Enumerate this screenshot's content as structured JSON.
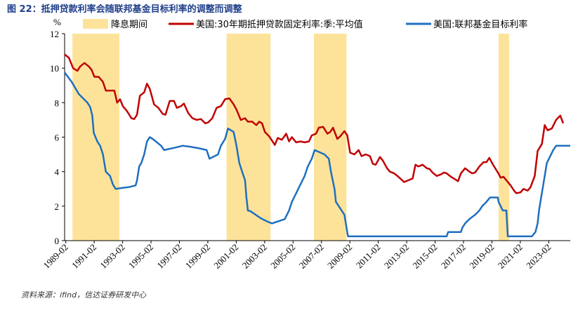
{
  "figure": {
    "title": "图 22：抵押贷款利率会随联邦基金目标利率的调整而调整",
    "source": "资料来源：ifind，信达证券研发中心"
  },
  "chart_data": {
    "type": "line",
    "ylabel": "%",
    "ylim": [
      0,
      12
    ],
    "yticks": [
      0,
      2,
      4,
      6,
      8,
      10,
      12
    ],
    "xlim": [
      1989.0,
      2024.6
    ],
    "xticks": [
      "1989-02",
      "1991-02",
      "1993-02",
      "1995-02",
      "1997-02",
      "1999-02",
      "2001-02",
      "2003-02",
      "2005-02",
      "2007-02",
      "2009-02",
      "2011-02",
      "2013-02",
      "2015-02",
      "2017-02",
      "2019-02",
      "2021-02",
      "2023-02"
    ],
    "grid": false,
    "legend": "top",
    "shaded_periods": {
      "name": "降息期间",
      "color": "#fde39a",
      "ranges": [
        [
          1989.55,
          1992.85
        ],
        [
          2000.4,
          2003.5
        ],
        [
          2006.55,
          2008.85
        ],
        [
          2019.55,
          2020.3
        ]
      ]
    },
    "series": [
      {
        "name": "美国:30年期抵押贷款固定利率:季:平均值",
        "color": "#c00000",
        "points": [
          [
            1989.0,
            10.8
          ],
          [
            1989.3,
            10.6
          ],
          [
            1989.6,
            10.0
          ],
          [
            1989.9,
            9.85
          ],
          [
            1990.1,
            10.1
          ],
          [
            1990.4,
            10.3
          ],
          [
            1990.7,
            10.1
          ],
          [
            1990.9,
            9.9
          ],
          [
            1991.1,
            9.5
          ],
          [
            1991.4,
            9.5
          ],
          [
            1991.7,
            9.2
          ],
          [
            1991.9,
            8.7
          ],
          [
            1992.2,
            8.7
          ],
          [
            1992.5,
            8.7
          ],
          [
            1992.7,
            8.0
          ],
          [
            1992.9,
            8.2
          ],
          [
            1993.1,
            7.8
          ],
          [
            1993.4,
            7.5
          ],
          [
            1993.7,
            7.1
          ],
          [
            1993.9,
            7.05
          ],
          [
            1994.1,
            7.3
          ],
          [
            1994.3,
            8.4
          ],
          [
            1994.6,
            8.6
          ],
          [
            1994.8,
            9.1
          ],
          [
            1995.0,
            8.8
          ],
          [
            1995.3,
            7.9
          ],
          [
            1995.6,
            7.7
          ],
          [
            1995.9,
            7.35
          ],
          [
            1996.1,
            7.3
          ],
          [
            1996.4,
            8.1
          ],
          [
            1996.7,
            8.1
          ],
          [
            1996.9,
            7.7
          ],
          [
            1997.2,
            7.8
          ],
          [
            1997.4,
            7.95
          ],
          [
            1997.7,
            7.4
          ],
          [
            1998.0,
            7.1
          ],
          [
            1998.3,
            7.0
          ],
          [
            1998.6,
            7.05
          ],
          [
            1998.9,
            6.8
          ],
          [
            1999.1,
            6.85
          ],
          [
            1999.4,
            7.1
          ],
          [
            1999.7,
            7.7
          ],
          [
            2000.0,
            7.8
          ],
          [
            2000.3,
            8.2
          ],
          [
            2000.6,
            8.25
          ],
          [
            2000.9,
            7.9
          ],
          [
            2001.1,
            7.6
          ],
          [
            2001.4,
            7.0
          ],
          [
            2001.7,
            7.1
          ],
          [
            2001.9,
            6.9
          ],
          [
            2002.2,
            6.9
          ],
          [
            2002.5,
            6.7
          ],
          [
            2002.7,
            6.9
          ],
          [
            2002.9,
            6.8
          ],
          [
            2003.1,
            6.3
          ],
          [
            2003.4,
            6.05
          ],
          [
            2003.6,
            5.8
          ],
          [
            2003.8,
            5.55
          ],
          [
            2004.0,
            5.95
          ],
          [
            2004.3,
            5.85
          ],
          [
            2004.6,
            6.2
          ],
          [
            2004.8,
            5.75
          ],
          [
            2005.0,
            6.0
          ],
          [
            2005.3,
            5.7
          ],
          [
            2005.6,
            5.75
          ],
          [
            2005.9,
            5.7
          ],
          [
            2006.2,
            5.75
          ],
          [
            2006.4,
            6.1
          ],
          [
            2006.7,
            6.2
          ],
          [
            2006.9,
            6.55
          ],
          [
            2007.2,
            6.6
          ],
          [
            2007.5,
            6.2
          ],
          [
            2007.7,
            6.3
          ],
          [
            2007.9,
            6.55
          ],
          [
            2008.2,
            5.9
          ],
          [
            2008.4,
            6.05
          ],
          [
            2008.7,
            6.35
          ],
          [
            2008.9,
            6.1
          ],
          [
            2009.1,
            5.1
          ],
          [
            2009.4,
            5.0
          ],
          [
            2009.7,
            5.25
          ],
          [
            2009.9,
            4.9
          ],
          [
            2010.2,
            5.0
          ],
          [
            2010.5,
            4.9
          ],
          [
            2010.7,
            4.45
          ],
          [
            2010.9,
            4.4
          ],
          [
            2011.2,
            4.85
          ],
          [
            2011.4,
            4.65
          ],
          [
            2011.7,
            4.2
          ],
          [
            2011.9,
            4.0
          ],
          [
            2012.2,
            3.9
          ],
          [
            2012.5,
            3.7
          ],
          [
            2012.7,
            3.55
          ],
          [
            2012.9,
            3.4
          ],
          [
            2013.2,
            3.5
          ],
          [
            2013.5,
            3.6
          ],
          [
            2013.7,
            4.4
          ],
          [
            2013.9,
            4.3
          ],
          [
            2014.2,
            4.4
          ],
          [
            2014.5,
            4.2
          ],
          [
            2014.7,
            4.15
          ],
          [
            2014.9,
            3.95
          ],
          [
            2015.2,
            3.75
          ],
          [
            2015.5,
            3.85
          ],
          [
            2015.7,
            3.95
          ],
          [
            2015.9,
            3.9
          ],
          [
            2016.2,
            3.7
          ],
          [
            2016.5,
            3.55
          ],
          [
            2016.7,
            3.45
          ],
          [
            2016.9,
            3.9
          ],
          [
            2017.2,
            4.2
          ],
          [
            2017.5,
            4.0
          ],
          [
            2017.7,
            3.9
          ],
          [
            2017.9,
            3.95
          ],
          [
            2018.2,
            4.3
          ],
          [
            2018.5,
            4.55
          ],
          [
            2018.7,
            4.55
          ],
          [
            2018.9,
            4.8
          ],
          [
            2019.2,
            4.35
          ],
          [
            2019.5,
            3.95
          ],
          [
            2019.7,
            3.65
          ],
          [
            2019.9,
            3.7
          ],
          [
            2020.1,
            3.5
          ],
          [
            2020.4,
            3.2
          ],
          [
            2020.6,
            2.95
          ],
          [
            2020.8,
            2.75
          ],
          [
            2021.1,
            2.8
          ],
          [
            2021.3,
            3.0
          ],
          [
            2021.6,
            2.9
          ],
          [
            2021.8,
            3.1
          ],
          [
            2022.1,
            3.75
          ],
          [
            2022.3,
            5.2
          ],
          [
            2022.6,
            5.6
          ],
          [
            2022.8,
            6.7
          ],
          [
            2023.0,
            6.4
          ],
          [
            2023.3,
            6.5
          ],
          [
            2023.6,
            7.0
          ],
          [
            2023.9,
            7.25
          ],
          [
            2024.1,
            6.8
          ]
        ]
      },
      {
        "name": "美国:联邦基金目标利率",
        "color": "#1f6fbf",
        "points": [
          [
            1989.0,
            9.75
          ],
          [
            1989.5,
            9.2
          ],
          [
            1990.0,
            8.5
          ],
          [
            1990.6,
            8.0
          ],
          [
            1990.8,
            7.75
          ],
          [
            1990.95,
            7.25
          ],
          [
            1991.05,
            6.25
          ],
          [
            1991.3,
            5.75
          ],
          [
            1991.5,
            5.5
          ],
          [
            1991.7,
            5.0
          ],
          [
            1991.8,
            4.5
          ],
          [
            1991.9,
            4.0
          ],
          [
            1992.2,
            3.75
          ],
          [
            1992.4,
            3.25
          ],
          [
            1992.6,
            3.0
          ],
          [
            1993.0,
            3.05
          ],
          [
            1993.5,
            3.1
          ],
          [
            1994.0,
            3.2
          ],
          [
            1994.1,
            3.5
          ],
          [
            1994.25,
            4.3
          ],
          [
            1994.4,
            4.5
          ],
          [
            1994.6,
            5.0
          ],
          [
            1994.8,
            5.75
          ],
          [
            1995.0,
            6.0
          ],
          [
            1995.2,
            5.9
          ],
          [
            1995.8,
            5.5
          ],
          [
            1996.0,
            5.25
          ],
          [
            1996.8,
            5.4
          ],
          [
            1997.3,
            5.5
          ],
          [
            1997.8,
            5.45
          ],
          [
            1998.5,
            5.35
          ],
          [
            1999.0,
            5.25
          ],
          [
            1999.2,
            4.75
          ],
          [
            1999.8,
            5.0
          ],
          [
            2000.0,
            5.5
          ],
          [
            2000.3,
            5.9
          ],
          [
            2000.5,
            6.5
          ],
          [
            2000.9,
            6.3
          ],
          [
            2001.1,
            5.5
          ],
          [
            2001.3,
            4.5
          ],
          [
            2001.5,
            4.0
          ],
          [
            2001.7,
            3.5
          ],
          [
            2001.8,
            2.5
          ],
          [
            2001.9,
            1.75
          ],
          [
            2002.1,
            1.7
          ],
          [
            2002.8,
            1.3
          ],
          [
            2003.3,
            1.1
          ],
          [
            2003.6,
            1.0
          ],
          [
            2004.5,
            1.25
          ],
          [
            2004.8,
            1.75
          ],
          [
            2005.0,
            2.25
          ],
          [
            2005.3,
            2.75
          ],
          [
            2005.6,
            3.25
          ],
          [
            2005.9,
            3.75
          ],
          [
            2006.1,
            4.25
          ],
          [
            2006.4,
            4.75
          ],
          [
            2006.6,
            5.25
          ],
          [
            2007.3,
            5.0
          ],
          [
            2007.6,
            4.75
          ],
          [
            2007.75,
            4.0
          ],
          [
            2008.0,
            3.0
          ],
          [
            2008.1,
            2.25
          ],
          [
            2008.3,
            2.0
          ],
          [
            2008.7,
            1.5
          ],
          [
            2008.95,
            0.25
          ],
          [
            2010.0,
            0.25
          ],
          [
            2012.0,
            0.25
          ],
          [
            2014.0,
            0.25
          ],
          [
            2015.9,
            0.25
          ],
          [
            2016.0,
            0.5
          ],
          [
            2016.9,
            0.5
          ],
          [
            2017.0,
            0.75
          ],
          [
            2017.2,
            1.0
          ],
          [
            2017.5,
            1.25
          ],
          [
            2017.9,
            1.5
          ],
          [
            2018.2,
            1.75
          ],
          [
            2018.4,
            2.0
          ],
          [
            2018.7,
            2.25
          ],
          [
            2018.95,
            2.5
          ],
          [
            2019.5,
            2.5
          ],
          [
            2019.55,
            2.25
          ],
          [
            2019.7,
            2.0
          ],
          [
            2019.85,
            1.75
          ],
          [
            2020.1,
            1.75
          ],
          [
            2020.2,
            0.25
          ],
          [
            2021.0,
            0.25
          ],
          [
            2021.9,
            0.25
          ],
          [
            2022.15,
            0.5
          ],
          [
            2022.3,
            1.0
          ],
          [
            2022.4,
            1.75
          ],
          [
            2022.55,
            2.5
          ],
          [
            2022.7,
            3.25
          ],
          [
            2022.85,
            4.0
          ],
          [
            2022.95,
            4.5
          ],
          [
            2023.1,
            4.75
          ],
          [
            2023.25,
            5.0
          ],
          [
            2023.4,
            5.25
          ],
          [
            2023.6,
            5.5
          ],
          [
            2024.6,
            5.5
          ]
        ]
      }
    ]
  }
}
